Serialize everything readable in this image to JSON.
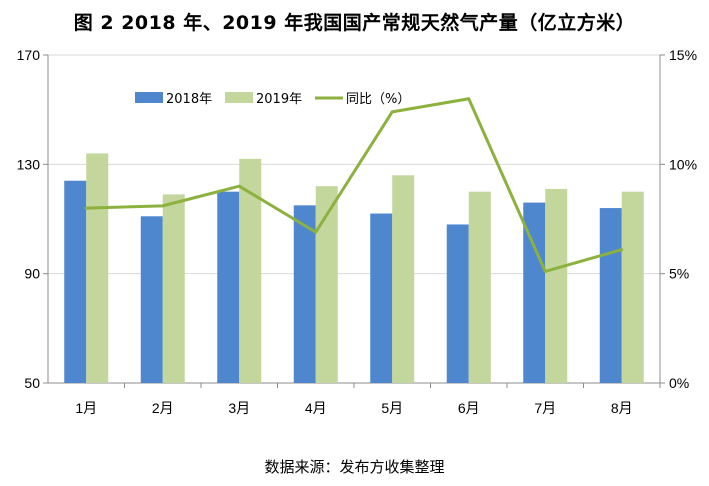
{
  "title": "图 2   2018 年、2019 年我国国产常规天然气产量（亿立方米）",
  "source": "数据来源：发布方收集整理",
  "chart_data": {
    "type": "bar+line",
    "categories": [
      "1月",
      "2月",
      "3月",
      "4月",
      "5月",
      "6月",
      "7月",
      "8月"
    ],
    "series": [
      {
        "name": "2018年",
        "type": "bar",
        "axis": "left",
        "color": "#4f87cf",
        "values": [
          124,
          111,
          120,
          115,
          112,
          108,
          116,
          114
        ]
      },
      {
        "name": "2019年",
        "type": "bar",
        "axis": "left",
        "color": "#c3d69b",
        "values": [
          134,
          119,
          132,
          122,
          126,
          120,
          121,
          120
        ]
      },
      {
        "name": "同比（%）",
        "type": "line",
        "axis": "right",
        "color": "#8db13e",
        "values": [
          8.0,
          8.1,
          9.0,
          6.9,
          12.4,
          13.0,
          5.1,
          6.1
        ]
      }
    ],
    "y_left": {
      "min": 50,
      "max": 170,
      "ticks": [
        50,
        90,
        130,
        170
      ]
    },
    "y_right": {
      "min": 0,
      "max": 15,
      "ticks": [
        "0%",
        "5%",
        "10%",
        "15%"
      ]
    },
    "grid": true,
    "legend": "top-center"
  }
}
